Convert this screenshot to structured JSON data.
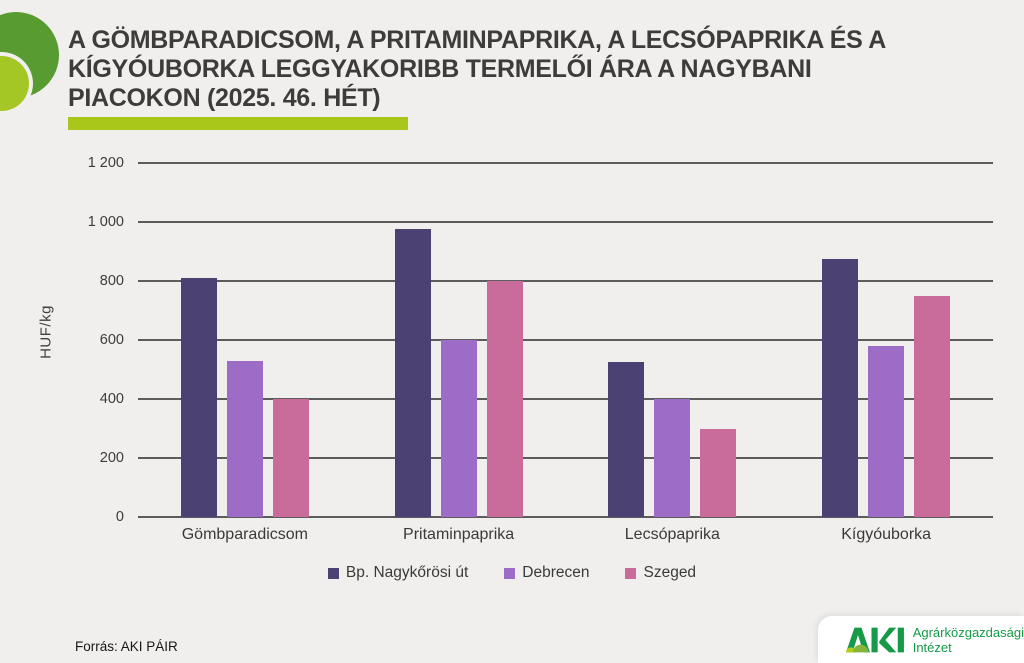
{
  "title_lines": [
    "A gömbparadicsom, a pritaminpaprika, a lecsópaprika és a",
    "kígyóuborka leggyakoribb termelői ára a nagybani",
    "piacokon (2025. 46. hét)"
  ],
  "accent_color": "#a9c61b",
  "chart_data": {
    "type": "bar",
    "title": "A gömbparadicsom, a pritaminpaprika, a lecsópaprika és a kígyóuborka leggyakoribb termelői ára a nagybani piacokon (2025. 46. hét)",
    "categories": [
      "Gömbparadicsom",
      "Pritaminpaprika",
      "Lecsópaprika",
      "Kígyóuborka"
    ],
    "series": [
      {
        "name": "Bp. Nagykőrösi út",
        "color": "#4c4173",
        "values": [
          810,
          975,
          525,
          875
        ]
      },
      {
        "name": "Debrecen",
        "color": "#9c6cc6",
        "values": [
          530,
          600,
          400,
          580
        ]
      },
      {
        "name": "Szeged",
        "color": "#c96b9b",
        "values": [
          400,
          800,
          300,
          750
        ]
      }
    ],
    "xlabel": "",
    "ylabel": "HUF/kg",
    "ylim": [
      0,
      1200
    ],
    "yticks": [
      {
        "label": "0",
        "value": 0
      },
      {
        "label": "200",
        "value": 200
      },
      {
        "label": "400",
        "value": 400
      },
      {
        "label": "600",
        "value": 600
      },
      {
        "label": "800",
        "value": 800
      },
      {
        "label": "1 000",
        "value": 1000
      },
      {
        "label": "1 200",
        "value": 1200
      }
    ],
    "grid": true,
    "legend_position": "bottom"
  },
  "footer": {
    "source": "Forrás: AKI PÁIR"
  },
  "logo": {
    "acronym": "AKI",
    "name_line1": "Agrárközgazdasági",
    "name_line2": "Intézet",
    "letter_color": "#169a47",
    "mound_small_color": "#b9cc15",
    "mound_big_color": "#85b43a"
  }
}
